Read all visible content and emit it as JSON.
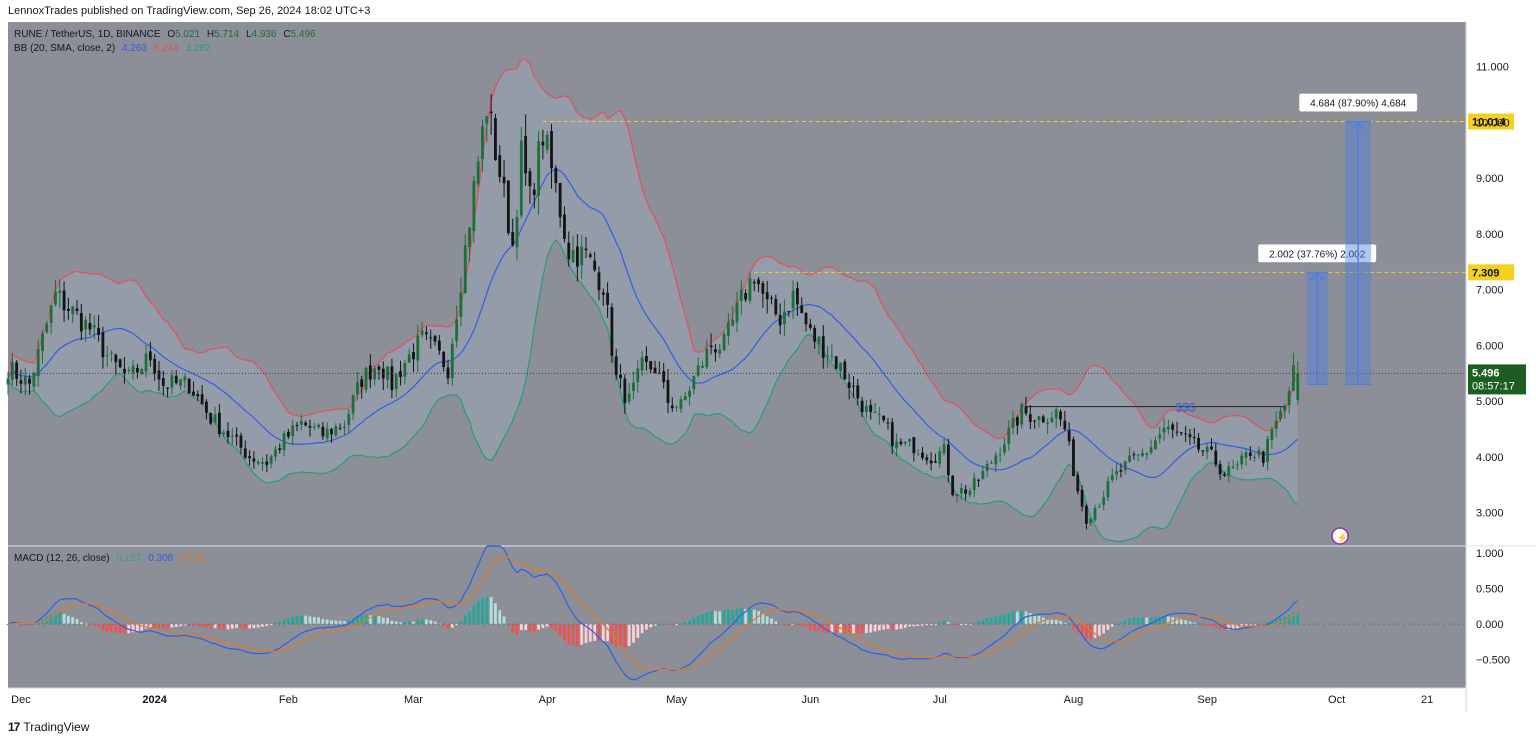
{
  "header": {
    "published": "LennoxTrades published on TradingView.com, Sep 26, 2024 18:02 UTC+3"
  },
  "footer": {
    "brand": "TradingView",
    "logo": "17"
  },
  "legend": {
    "symbol": "RUNE / TetherUS, 1D, BINANCE",
    "o_label": "O",
    "o": "5.021",
    "h_label": "H",
    "h": "5.714",
    "l_label": "L",
    "l": "4.936",
    "c_label": "C",
    "c": "5.496",
    "bb_label": "BB (20, SMA, close, 2)",
    "bb_basis": "4.263",
    "bb_upper": "5.244",
    "bb_lower": "3.282",
    "macd_label": "MACD (12, 26, close)",
    "macd_hist": "0.127",
    "macd_line": "0.308",
    "macd_signal": "0.181"
  },
  "colors": {
    "background": "#8c8f97",
    "bull": "#1e6e3a",
    "bear": "#141414",
    "bb_upper": "#e2505a",
    "bb_basis": "#2f5fe0",
    "bb_lower": "#2a9a7a",
    "bb_fill": "#9aa8b8",
    "macd_line": "#2f5fe0",
    "signal_line": "#e07a2a",
    "hist_pos_strong": "#26a69a",
    "hist_pos_weak": "#b2dfdb",
    "hist_neg_strong": "#ef5350",
    "hist_neg_weak": "#ffcdd2",
    "level_line": "#f5d020",
    "projection": "#4f7ee0",
    "last_price_bg": "#1b5e20"
  },
  "chart_data": {
    "type": "candlestick",
    "main_axis": {
      "ylim": [
        2.4,
        11.8
      ],
      "ticks": [
        "11.000",
        "10.000",
        "9.000",
        "8.000",
        "7.000",
        "6.000",
        "5.000",
        "4.000",
        "3.000"
      ]
    },
    "macd_axis": {
      "ylim": [
        -0.9,
        1.1
      ],
      "ticks": [
        "1.000",
        "0.500",
        "0.000",
        "−0.500"
      ]
    },
    "x_ticks": [
      "Dec",
      "2024",
      "Feb",
      "Mar",
      "Apr",
      "May",
      "Jun",
      "Jul",
      "Aug",
      "Sep",
      "Oct",
      "21"
    ],
    "x_tick_days": [
      3,
      34,
      65,
      94,
      125,
      155,
      186,
      216,
      247,
      278,
      308,
      329
    ],
    "time_range_days": [
      0,
      338
    ],
    "price_anchors": [
      [
        0,
        5.6
      ],
      [
        5,
        5.3
      ],
      [
        11,
        6.9
      ],
      [
        15,
        6.6
      ],
      [
        19,
        6.3
      ],
      [
        24,
        5.7
      ],
      [
        28,
        5.4
      ],
      [
        33,
        5.8
      ],
      [
        36,
        5.3
      ],
      [
        42,
        5.3
      ],
      [
        47,
        4.7
      ],
      [
        51,
        4.4
      ],
      [
        56,
        4.0
      ],
      [
        60,
        3.9
      ],
      [
        64,
        4.3
      ],
      [
        68,
        4.6
      ],
      [
        73,
        4.4
      ],
      [
        78,
        4.6
      ],
      [
        82,
        5.4
      ],
      [
        86,
        5.7
      ],
      [
        89,
        5.3
      ],
      [
        92,
        5.7
      ],
      [
        96,
        6.1
      ],
      [
        99,
        5.9
      ],
      [
        102,
        5.6
      ],
      [
        105,
        7.2
      ],
      [
        108,
        8.8
      ],
      [
        111,
        10.3
      ],
      [
        114,
        9.1
      ],
      [
        117,
        7.8
      ],
      [
        119,
        9.4
      ],
      [
        121,
        8.6
      ],
      [
        124,
        9.8
      ],
      [
        127,
        8.8
      ],
      [
        130,
        7.7
      ],
      [
        134,
        7.6
      ],
      [
        138,
        7.1
      ],
      [
        141,
        5.4
      ],
      [
        144,
        5.0
      ],
      [
        147,
        5.6
      ],
      [
        150,
        5.6
      ],
      [
        153,
        5.0
      ],
      [
        156,
        4.9
      ],
      [
        159,
        5.4
      ],
      [
        163,
        6.0
      ],
      [
        166,
        6.0
      ],
      [
        170,
        6.8
      ],
      [
        173,
        7.3
      ],
      [
        176,
        6.7
      ],
      [
        179,
        6.5
      ],
      [
        182,
        6.9
      ],
      [
        186,
        6.2
      ],
      [
        190,
        5.9
      ],
      [
        193,
        5.6
      ],
      [
        196,
        5.2
      ],
      [
        200,
        4.7
      ],
      [
        203,
        4.6
      ],
      [
        206,
        4.2
      ],
      [
        210,
        4.2
      ],
      [
        214,
        4.0
      ],
      [
        217,
        4.1
      ],
      [
        219,
        3.4
      ],
      [
        223,
        3.4
      ],
      [
        227,
        3.8
      ],
      [
        231,
        4.3
      ],
      [
        235,
        4.8
      ],
      [
        239,
        4.7
      ],
      [
        243,
        4.8
      ],
      [
        245,
        4.5
      ],
      [
        248,
        3.4
      ],
      [
        250,
        2.9
      ],
      [
        253,
        3.2
      ],
      [
        256,
        3.6
      ],
      [
        260,
        3.9
      ],
      [
        264,
        4.1
      ],
      [
        268,
        4.5
      ],
      [
        271,
        4.4
      ],
      [
        275,
        4.2
      ],
      [
        279,
        4.0
      ],
      [
        282,
        3.7
      ],
      [
        285,
        3.8
      ],
      [
        288,
        4.1
      ],
      [
        291,
        4.0
      ],
      [
        294,
        4.6
      ],
      [
        296,
        4.9
      ],
      [
        298,
        5.5
      ]
    ],
    "last": {
      "open": 5.021,
      "high": 5.714,
      "low": 4.936,
      "close": 5.496
    },
    "levels": [
      {
        "value": 10.014,
        "label": "10.014",
        "from_day": 124
      },
      {
        "value": 7.309,
        "label": "7.309",
        "from_day": 173
      }
    ],
    "liquidity_line": {
      "value": 4.9,
      "from_day": 236,
      "to_day": 296,
      "label": "$$$"
    },
    "projections": [
      {
        "from": 5.3,
        "to": 7.309,
        "x0_day": 301,
        "x1_day": 306,
        "label": "2.002 (37.76%) 2.002"
      },
      {
        "from": 5.3,
        "to": 10.014,
        "x0_day": 310,
        "x1_day": 316,
        "label": "4.684 (87.90%) 4,684"
      }
    ],
    "last_price": {
      "value": "5.496",
      "countdown": "08:57:17"
    }
  }
}
